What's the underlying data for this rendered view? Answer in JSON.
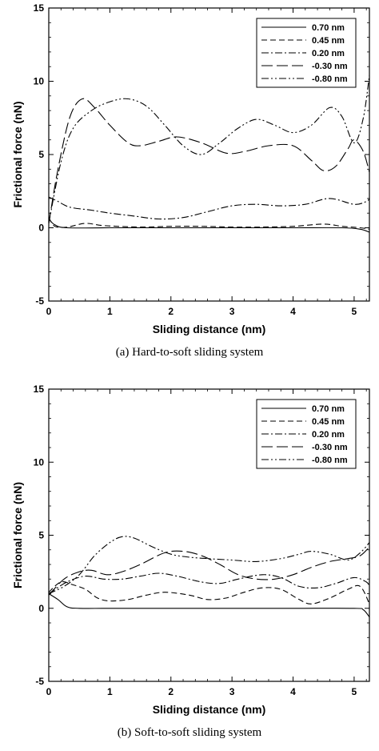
{
  "chart_data": [
    {
      "type": "line",
      "caption": "(a) Hard-to-soft sliding system",
      "xlabel": "Sliding distance (nm)",
      "ylabel": "Frictional force (nN)",
      "xlim": [
        0,
        5.25
      ],
      "ylim": [
        -5,
        15
      ],
      "x_ticks": [
        "0",
        "1",
        "2",
        "3",
        "4",
        "5"
      ],
      "y_ticks": [
        "-5",
        "0",
        "5",
        "10",
        "15"
      ],
      "legend_position": "top-right",
      "series": [
        {
          "name": "0.70 nm",
          "dash": "solid",
          "points": [
            [
              0,
              0.6
            ],
            [
              0.1,
              0.2
            ],
            [
              0.3,
              0.0
            ],
            [
              1,
              0.0
            ],
            [
              2,
              0.0
            ],
            [
              3,
              0.0
            ],
            [
              4,
              0.0
            ],
            [
              4.8,
              0.0
            ],
            [
              5.1,
              -0.1
            ],
            [
              5.25,
              -0.3
            ]
          ]
        },
        {
          "name": "0.45 nm",
          "dash": "dash",
          "points": [
            [
              0,
              0.7
            ],
            [
              0.1,
              0.1
            ],
            [
              0.3,
              0.05
            ],
            [
              0.6,
              0.3
            ],
            [
              0.9,
              0.15
            ],
            [
              1.5,
              0.05
            ],
            [
              2,
              0.1
            ],
            [
              2.5,
              0.1
            ],
            [
              3,
              0.05
            ],
            [
              3.5,
              0.05
            ],
            [
              4,
              0.1
            ],
            [
              4.5,
              0.25
            ],
            [
              4.8,
              0.1
            ],
            [
              5.1,
              0.0
            ],
            [
              5.25,
              -0.1
            ]
          ]
        },
        {
          "name": "0.20 nm",
          "dash": "dashdot",
          "points": [
            [
              0,
              2.1
            ],
            [
              0.15,
              1.8
            ],
            [
              0.35,
              1.4
            ],
            [
              0.7,
              1.2
            ],
            [
              1.0,
              1.0
            ],
            [
              1.4,
              0.8
            ],
            [
              1.8,
              0.6
            ],
            [
              2.2,
              0.7
            ],
            [
              2.6,
              1.1
            ],
            [
              3.0,
              1.5
            ],
            [
              3.4,
              1.6
            ],
            [
              3.8,
              1.5
            ],
            [
              4.2,
              1.6
            ],
            [
              4.6,
              2.0
            ],
            [
              5.0,
              1.6
            ],
            [
              5.2,
              1.8
            ],
            [
              5.25,
              2.0
            ]
          ]
        },
        {
          "name": "-0.30 nm",
          "dash": "longdash",
          "points": [
            [
              0,
              0.3
            ],
            [
              0.15,
              4
            ],
            [
              0.35,
              7.6
            ],
            [
              0.55,
              8.8
            ],
            [
              0.75,
              8.2
            ],
            [
              1.0,
              7.0
            ],
            [
              1.3,
              5.8
            ],
            [
              1.5,
              5.6
            ],
            [
              1.8,
              5.9
            ],
            [
              2.1,
              6.2
            ],
            [
              2.5,
              5.8
            ],
            [
              2.9,
              5.1
            ],
            [
              3.2,
              5.2
            ],
            [
              3.6,
              5.6
            ],
            [
              4.0,
              5.6
            ],
            [
              4.3,
              4.6
            ],
            [
              4.5,
              3.9
            ],
            [
              4.7,
              4.2
            ],
            [
              4.9,
              5.4
            ],
            [
              5.0,
              6.0
            ],
            [
              5.15,
              5.2
            ],
            [
              5.25,
              3.8
            ]
          ]
        },
        {
          "name": "-0.80 nm",
          "dash": "dashdotdot",
          "points": [
            [
              0,
              0.3
            ],
            [
              0.2,
              4.5
            ],
            [
              0.4,
              6.8
            ],
            [
              0.7,
              8.0
            ],
            [
              1.0,
              8.6
            ],
            [
              1.3,
              8.8
            ],
            [
              1.6,
              8.3
            ],
            [
              1.9,
              7.0
            ],
            [
              2.2,
              5.6
            ],
            [
              2.5,
              5.0
            ],
            [
              2.8,
              5.8
            ],
            [
              3.1,
              6.8
            ],
            [
              3.4,
              7.4
            ],
            [
              3.7,
              7.0
            ],
            [
              4.0,
              6.5
            ],
            [
              4.3,
              7.0
            ],
            [
              4.6,
              8.2
            ],
            [
              4.8,
              7.6
            ],
            [
              5.0,
              5.8
            ],
            [
              5.15,
              7.5
            ],
            [
              5.25,
              10.4
            ]
          ]
        }
      ]
    },
    {
      "type": "line",
      "caption": "(b) Soft-to-soft sliding system",
      "xlabel": "Sliding distance (nm)",
      "ylabel": "Frictional force (nN)",
      "xlim": [
        0,
        5.25
      ],
      "ylim": [
        -5,
        15
      ],
      "x_ticks": [
        "0",
        "1",
        "2",
        "3",
        "4",
        "5"
      ],
      "y_ticks": [
        "-5",
        "0",
        "5",
        "10",
        "15"
      ],
      "legend_position": "top-right",
      "series": [
        {
          "name": "0.70 nm",
          "dash": "solid",
          "points": [
            [
              0,
              1.0
            ],
            [
              0.15,
              0.6
            ],
            [
              0.3,
              0.1
            ],
            [
              0.5,
              0.0
            ],
            [
              1,
              0.0
            ],
            [
              2,
              0.0
            ],
            [
              3,
              0.0
            ],
            [
              4,
              0.0
            ],
            [
              5,
              0.0
            ],
            [
              5.15,
              -0.1
            ],
            [
              5.25,
              -0.6
            ]
          ]
        },
        {
          "name": "0.45 nm",
          "dash": "dash",
          "points": [
            [
              0,
              1.1
            ],
            [
              0.2,
              1.8
            ],
            [
              0.4,
              1.6
            ],
            [
              0.6,
              1.3
            ],
            [
              0.8,
              0.7
            ],
            [
              1.0,
              0.5
            ],
            [
              1.3,
              0.6
            ],
            [
              1.6,
              0.9
            ],
            [
              1.9,
              1.1
            ],
            [
              2.3,
              0.9
            ],
            [
              2.6,
              0.6
            ],
            [
              2.9,
              0.7
            ],
            [
              3.2,
              1.1
            ],
            [
              3.5,
              1.4
            ],
            [
              3.8,
              1.3
            ],
            [
              4.1,
              0.6
            ],
            [
              4.3,
              0.3
            ],
            [
              4.6,
              0.7
            ],
            [
              4.9,
              1.3
            ],
            [
              5.1,
              1.5
            ],
            [
              5.25,
              0.3
            ]
          ]
        },
        {
          "name": "0.20 nm",
          "dash": "dashdot",
          "points": [
            [
              0,
              1.0
            ],
            [
              0.3,
              1.8
            ],
            [
              0.6,
              2.2
            ],
            [
              0.9,
              2.0
            ],
            [
              1.2,
              2.0
            ],
            [
              1.5,
              2.2
            ],
            [
              1.8,
              2.4
            ],
            [
              2.1,
              2.2
            ],
            [
              2.5,
              1.8
            ],
            [
              2.8,
              1.7
            ],
            [
              3.1,
              2.0
            ],
            [
              3.5,
              2.3
            ],
            [
              3.8,
              2.1
            ],
            [
              4.1,
              1.5
            ],
            [
              4.4,
              1.4
            ],
            [
              4.7,
              1.7
            ],
            [
              5.0,
              2.1
            ],
            [
              5.2,
              1.8
            ],
            [
              5.25,
              1.5
            ]
          ]
        },
        {
          "name": "-0.30 nm",
          "dash": "longdash",
          "points": [
            [
              0,
              0.9
            ],
            [
              0.25,
              2.0
            ],
            [
              0.5,
              2.5
            ],
            [
              0.7,
              2.6
            ],
            [
              0.95,
              2.3
            ],
            [
              1.2,
              2.5
            ],
            [
              1.5,
              3.0
            ],
            [
              1.9,
              3.8
            ],
            [
              2.2,
              3.9
            ],
            [
              2.5,
              3.6
            ],
            [
              2.8,
              3.0
            ],
            [
              3.1,
              2.3
            ],
            [
              3.4,
              2.0
            ],
            [
              3.7,
              2.0
            ],
            [
              4.0,
              2.3
            ],
            [
              4.3,
              2.8
            ],
            [
              4.6,
              3.2
            ],
            [
              4.9,
              3.4
            ],
            [
              5.1,
              3.6
            ],
            [
              5.25,
              4.2
            ]
          ]
        },
        {
          "name": "-0.80 nm",
          "dash": "dashdotdot",
          "points": [
            [
              0,
              1.0
            ],
            [
              0.25,
              1.5
            ],
            [
              0.5,
              2.3
            ],
            [
              0.75,
              3.6
            ],
            [
              1.0,
              4.5
            ],
            [
              1.2,
              4.9
            ],
            [
              1.4,
              4.8
            ],
            [
              1.7,
              4.2
            ],
            [
              2.0,
              3.7
            ],
            [
              2.3,
              3.5
            ],
            [
              2.6,
              3.4
            ],
            [
              3.0,
              3.3
            ],
            [
              3.4,
              3.2
            ],
            [
              3.8,
              3.4
            ],
            [
              4.1,
              3.7
            ],
            [
              4.3,
              3.9
            ],
            [
              4.6,
              3.7
            ],
            [
              4.9,
              3.3
            ],
            [
              5.1,
              3.8
            ],
            [
              5.25,
              4.5
            ]
          ]
        }
      ]
    }
  ]
}
